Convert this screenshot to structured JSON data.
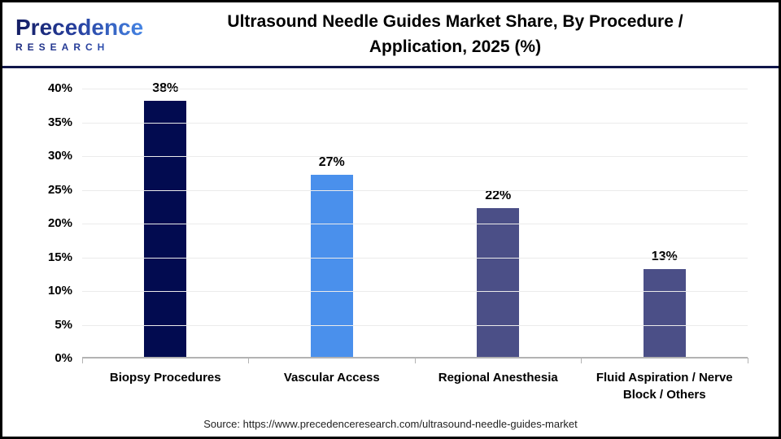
{
  "header": {
    "logo": {
      "brand_top": "Precedence",
      "brand_bottom": "RESEARCH"
    },
    "title_line1": "Ultrasound Needle Guides Market Share, By Procedure /",
    "title_line2": "Application, 2025 (%)"
  },
  "chart_data": {
    "type": "bar",
    "title": "Ultrasound Needle Guides Market Share, By Procedure / Application, 2025 (%)",
    "categories": [
      "Biopsy Procedures",
      "Vascular Access",
      "Regional Anesthesia",
      "Fluid Aspiration / Nerve Block / Others"
    ],
    "values": [
      38,
      27,
      22,
      13
    ],
    "value_labels": [
      "38%",
      "27%",
      "22%",
      "13%"
    ],
    "bar_colors": [
      "#020b50",
      "#4a90ec",
      "#4b4f87",
      "#4b4f87"
    ],
    "xlabel": "",
    "ylabel": "",
    "ylim": [
      0,
      40
    ],
    "ytick_values": [
      0,
      5,
      10,
      15,
      20,
      25,
      30,
      35,
      40
    ],
    "ytick_labels": [
      "0%",
      "5%",
      "10%",
      "15%",
      "20%",
      "25%",
      "30%",
      "35%",
      "40%"
    ],
    "grid": "horizontal",
    "legend": "none"
  },
  "footer": {
    "source": "Source: https://www.precedenceresearch.com/ultrasound-needle-guides-market"
  },
  "colors": {
    "border": "#000000",
    "header_divider": "#10164a",
    "gridline": "#ebebeb",
    "axis_line": "#b3b3b3",
    "title_text": "#000000"
  }
}
